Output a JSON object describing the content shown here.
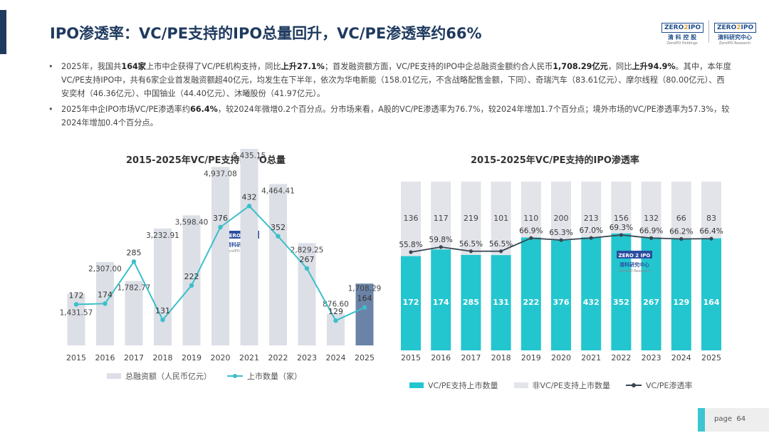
{
  "header": {
    "title": "IPO渗透率：VC/PE支持的IPO总量回升，VC/PE渗透率约66%",
    "logo1": {
      "brand_left": "ZERO",
      "brand_o": "2",
      "brand_right": "IPO",
      "cn": "清 科 控 股",
      "en": "ZeroIPO Holdings"
    },
    "logo2": {
      "brand_left": "ZERO",
      "brand_o": "2",
      "brand_right": "IPO",
      "cn": "清科研究中心",
      "en": "ZeroIPO Research"
    }
  },
  "bullets": [
    {
      "segments": [
        {
          "t": "2025年，我国共",
          "b": false
        },
        {
          "t": "164家",
          "b": true
        },
        {
          "t": "上市中企获得了VC/PE机构支持，同比",
          "b": false
        },
        {
          "t": "上升27.1%",
          "b": true
        },
        {
          "t": "；首发融资额方面，VC/PE支持的IPO中企总融资金额约合人民币",
          "b": false
        },
        {
          "t": "1,708.29亿元",
          "b": true
        },
        {
          "t": "，同比",
          "b": false
        },
        {
          "t": "上升94.9%",
          "b": true
        },
        {
          "t": "。其中，本年度VC/PE支持IPO中，共有6家企业首发融资额超40亿元，均发生在下半年，依次为华电新能（158.01亿元，不含战略配售金额，下同）、奇瑞汽车（83.61亿元）、摩尔线程（80.00亿元）、西安奕材（46.36亿元）、中国铀业（44.40亿元）、沐曦股份（41.97亿元）。",
          "b": false
        }
      ]
    },
    {
      "segments": [
        {
          "t": "2025年中企IPO市场VC/PE渗透率约",
          "b": false
        },
        {
          "t": "66.4%",
          "b": true
        },
        {
          "t": "，较2024年微增0.2个百分点。分市场来看，A股的VC/PE渗透率为76.7%，较2024年增加1.7个百分点；境外市场的VC/PE渗透率为57.3%，较2024年增加0.4个百分点。",
          "b": false
        }
      ]
    }
  ],
  "chart_data": [
    {
      "type": "bar+line",
      "title": "2015-2025年VC/PE支持的IPO总量",
      "categories": [
        "2015",
        "2016",
        "2017",
        "2018",
        "2019",
        "2020",
        "2021",
        "2022",
        "2023",
        "2024",
        "2025"
      ],
      "series": [
        {
          "name": "总融资额（人民币亿元）",
          "kind": "bar",
          "values": [
            1431.57,
            2307.0,
            1782.77,
            3232.91,
            3598.4,
            4937.08,
            5435.15,
            4464.41,
            2829.25,
            876.6,
            1708.29
          ],
          "labels": [
            "1,431.57",
            "2,307.00",
            "1,782.77",
            "3,232.91",
            "3,598.40",
            "4,937.08",
            "5,435.15",
            "4,464.41",
            "2,829.25",
            "876.60",
            "1,708.29"
          ]
        },
        {
          "name": "上市数量（家）",
          "kind": "line",
          "values": [
            172,
            174,
            285,
            131,
            222,
            376,
            432,
            352,
            267,
            129,
            164
          ]
        }
      ],
      "colors": {
        "bar": "#dcdfe6",
        "bar_highlight": "#6b83a6",
        "line": "#3cbfca"
      }
    },
    {
      "type": "stacked-bar+line",
      "title": "2015-2025年VC/PE支持的IPO渗透率",
      "categories": [
        "2015",
        "2016",
        "2017",
        "2018",
        "2019",
        "2020",
        "2021",
        "2022",
        "2023",
        "2024",
        "2025"
      ],
      "series": [
        {
          "name": "VC/PE支持上市数量",
          "kind": "bar",
          "values": [
            172,
            174,
            285,
            131,
            222,
            376,
            432,
            352,
            267,
            129,
            164
          ]
        },
        {
          "name": "非VC/PE支持上市数量",
          "kind": "bar",
          "values": [
            136,
            117,
            219,
            101,
            110,
            200,
            213,
            156,
            132,
            66,
            83
          ]
        },
        {
          "name": "VC/PE渗透率",
          "kind": "line",
          "values": [
            55.8,
            59.8,
            56.5,
            56.5,
            66.9,
            65.3,
            67.0,
            69.3,
            66.9,
            66.2,
            66.4
          ],
          "labels": [
            "55.8%",
            "59.8%",
            "56.5%",
            "56.5%",
            "66.9%",
            "65.3%",
            "67.0%",
            "69.3%",
            "66.9%",
            "66.2%",
            "66.4%"
          ]
        }
      ],
      "colors": {
        "vc": "#23c6cf",
        "non_vc": "#e2e4ea",
        "line": "#3a4652"
      }
    }
  ],
  "watermark": {
    "brand": "ZERO 2 IPO",
    "cn": "清科研究中心",
    "en": "ZeroIPO Research"
  },
  "footer": {
    "page_label": "page",
    "page_number": "64"
  }
}
